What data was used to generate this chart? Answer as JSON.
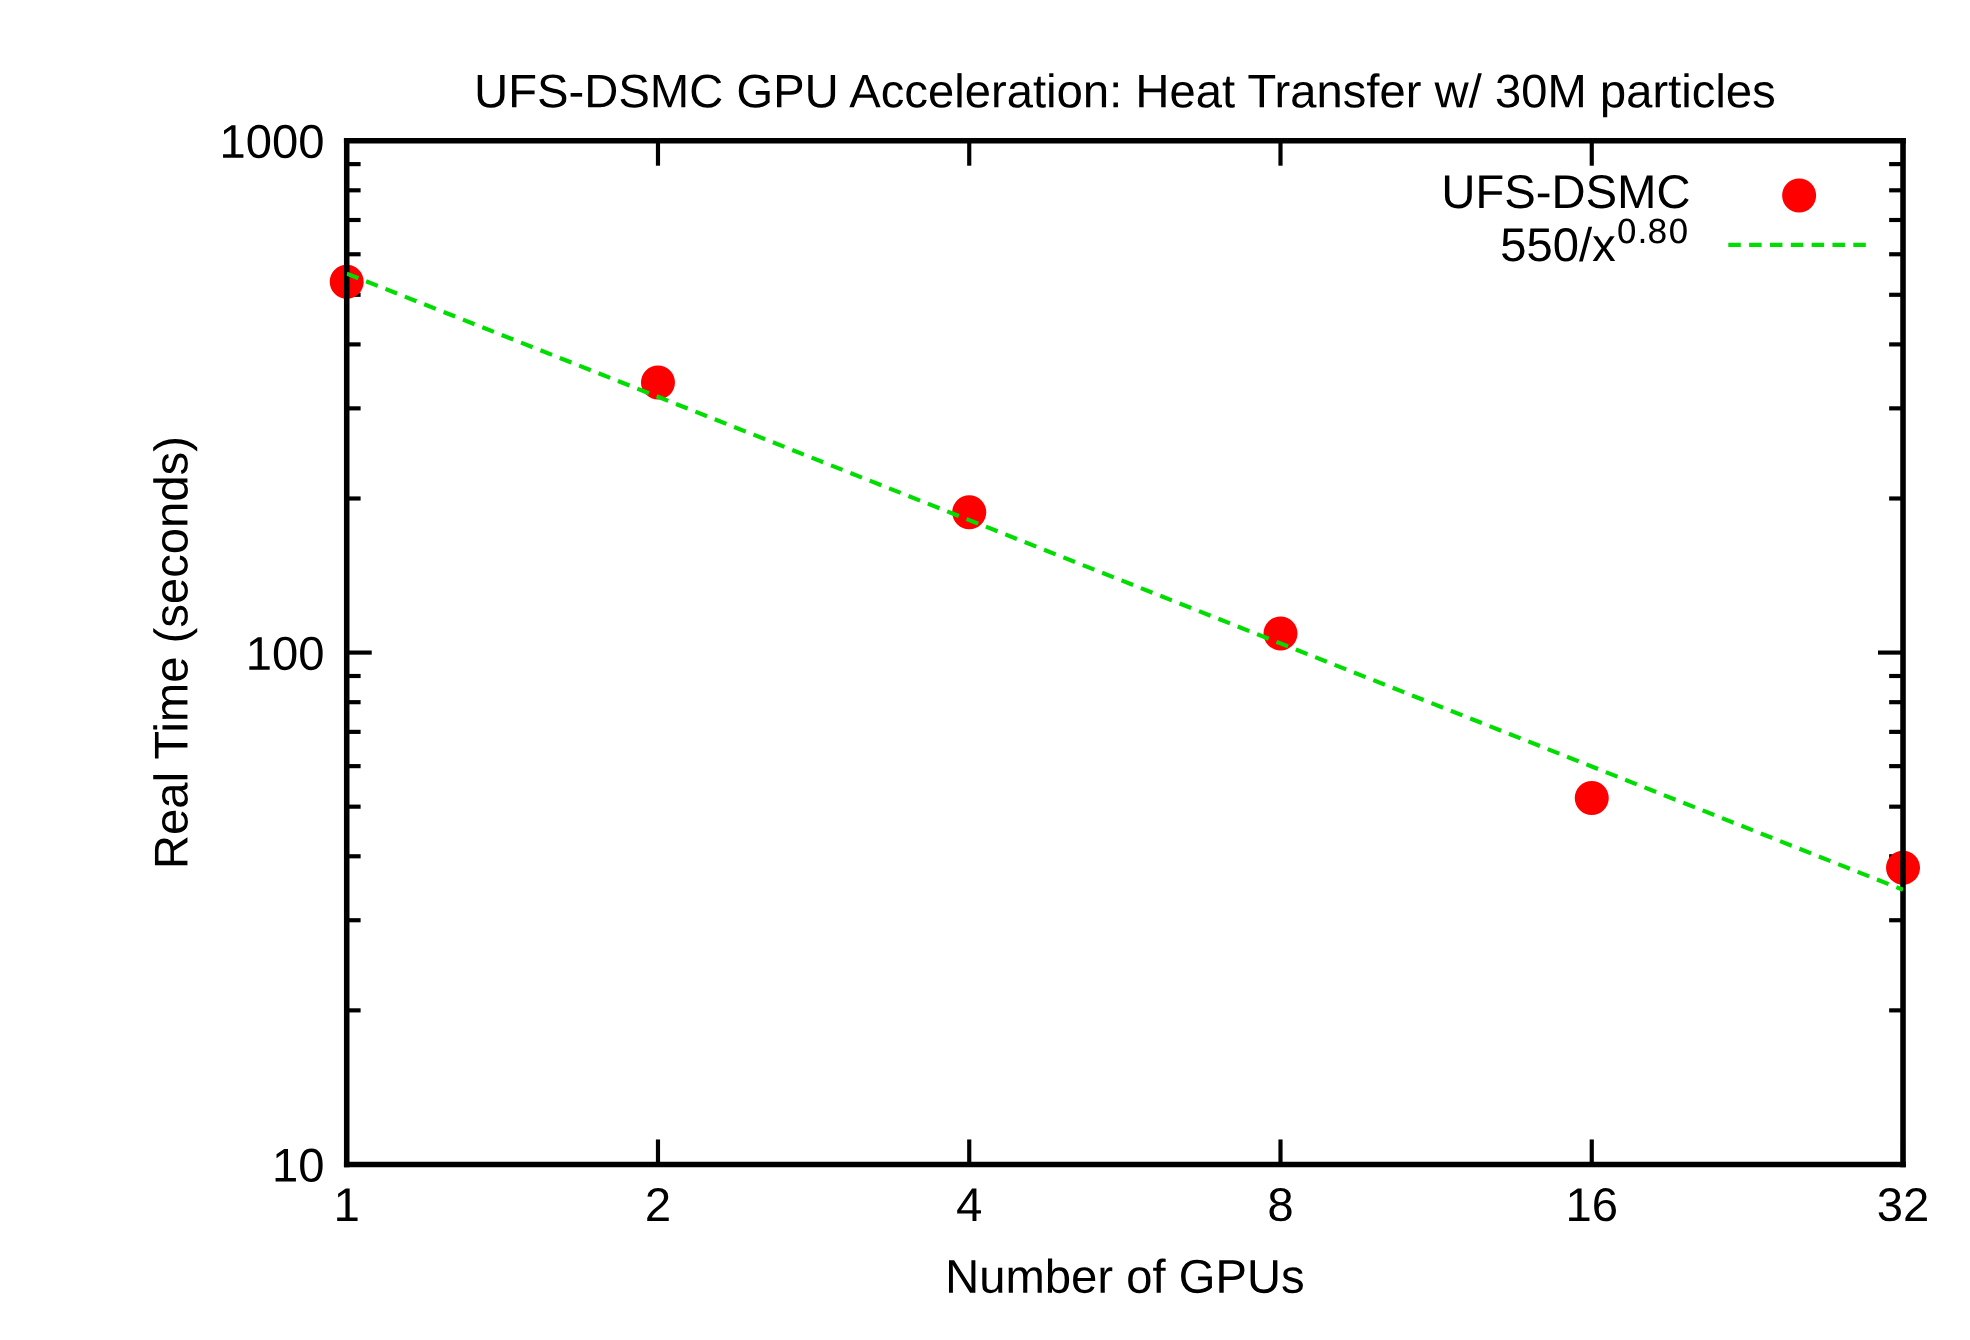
{
  "chart_data": {
    "type": "scatter",
    "title": "UFS-DSMC GPU Acceleration: Heat Transfer w/ 30M particles",
    "xlabel": "Number of GPUs",
    "ylabel": "Real Time (seconds)",
    "log": "xy",
    "xlim": [
      1,
      32
    ],
    "xticks": [
      1,
      2,
      4,
      8,
      16,
      32
    ],
    "ylim": [
      10,
      1000
    ],
    "yticks": [
      10,
      100,
      1000
    ],
    "grid": false,
    "legend": "top right",
    "series": [
      {
        "name": "UFS-DSMC",
        "color": "#ff0000",
        "marker": "circle",
        "x": [
          1,
          2,
          4,
          8,
          16,
          32
        ],
        "values": [
          530,
          337,
          188,
          109,
          52,
          38
        ]
      },
      {
        "name": "550/x$^{0.80}$",
        "type": "line",
        "color": "#00dd00",
        "line_style": "dashed",
        "x": [
          1,
          2,
          4,
          8,
          16,
          32
        ],
        "values": [
          550,
          316,
          181.5,
          104.2,
          59.9,
          34.4
        ]
      }
    ]
  }
}
